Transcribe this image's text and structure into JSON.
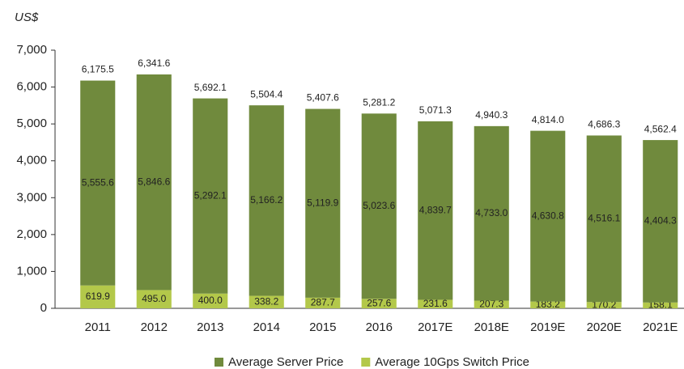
{
  "chart_data": {
    "type": "stacked_bar",
    "y_unit": "US$",
    "categories": [
      "2011",
      "2012",
      "2013",
      "2014",
      "2015",
      "2016",
      "2017E",
      "2018E",
      "2019E",
      "2020E",
      "2021E"
    ],
    "series": [
      {
        "name": "Average 10Gps Switch Price",
        "color": "#b3c84a",
        "values": [
          619.9,
          495.0,
          400.0,
          338.2,
          287.7,
          257.6,
          231.6,
          207.3,
          183.2,
          170.2,
          158.1
        ],
        "value_labels": [
          "619.9",
          "495.0",
          "400.0",
          "338.2",
          "287.7",
          "257.6",
          "231.6",
          "207.3",
          "183.2",
          "170.2",
          "158.1"
        ]
      },
      {
        "name": "Average Server Price",
        "color": "#708a3d",
        "values": [
          5555.6,
          5846.6,
          5292.1,
          5166.2,
          5119.9,
          5023.6,
          4839.7,
          4733.0,
          4630.8,
          4516.1,
          4404.3
        ],
        "value_labels": [
          "5,555.6",
          "5,846.6",
          "5,292.1",
          "5,166.2",
          "5,119.9",
          "5,023.6",
          "4,839.7",
          "4,733.0",
          "4,630.8",
          "4,516.1",
          "4,404.3"
        ]
      }
    ],
    "totals": [
      6175.5,
      6341.6,
      5692.1,
      5504.4,
      5407.6,
      5281.2,
      5071.3,
      4940.3,
      4814.0,
      4686.3,
      4562.4
    ],
    "total_labels": [
      "6,175.5",
      "6,341.6",
      "5,692.1",
      "5,504.4",
      "5,407.6",
      "5,281.2",
      "5,071.3",
      "4,940.3",
      "4,814.0",
      "4,686.3",
      "4,562.4"
    ],
    "ylim": [
      0,
      7000
    ],
    "yticks": [
      0,
      {
        "value": 1000,
        "label": "1,000"
      },
      {
        "value": 2000,
        "label": "2,000"
      },
      {
        "value": 3000,
        "label": "3,000"
      },
      {
        "value": 4000,
        "label": "4,000"
      },
      {
        "value": 5000,
        "label": "5,000"
      },
      {
        "value": 6000,
        "label": "6,000"
      },
      {
        "value": 7000,
        "label": "7,000"
      }
    ],
    "legend": "bottom"
  }
}
